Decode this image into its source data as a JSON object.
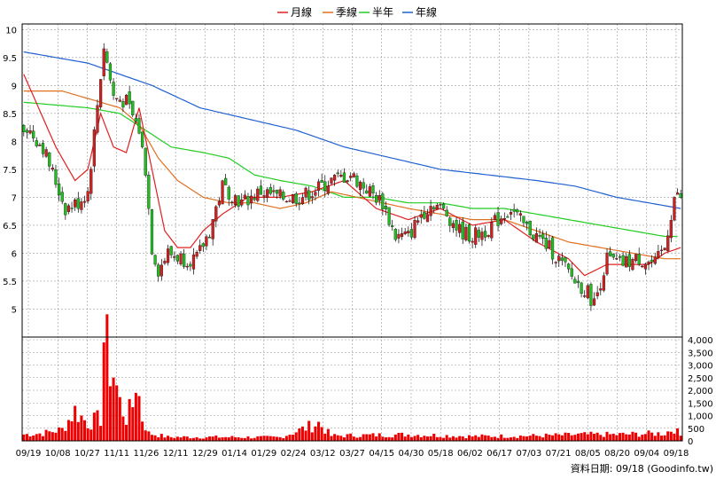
{
  "chart_data": {
    "type": "candlestick",
    "legend": [
      {
        "label": "月線",
        "color": "#e02020"
      },
      {
        "label": "季線",
        "color": "#e07020"
      },
      {
        "label": "半年",
        "color": "#22cc22"
      },
      {
        "label": "年線",
        "color": "#2060d0"
      }
    ],
    "price_axis": {
      "ticks": [
        "10",
        "9.5",
        "9",
        "8.5",
        "8",
        "7.5",
        "7",
        "6.5",
        "6",
        "5.5",
        "5"
      ],
      "min": 4.5,
      "max": 10.1
    },
    "volume_axis": {
      "ticks": [
        "4,000",
        "3,500",
        "3,000",
        "2,500",
        "2,000",
        "1,500",
        "1,000",
        "500",
        "0"
      ],
      "max": 4000
    },
    "x_ticks": [
      "09/19",
      "10/08",
      "10/27",
      "11/11",
      "11/26",
      "12/11",
      "12/29",
      "01/14",
      "01/29",
      "02/24",
      "03/12",
      "03/27",
      "04/15",
      "04/30",
      "05/18",
      "06/02",
      "06/17",
      "07/03",
      "07/21",
      "08/05",
      "08/20",
      "09/04",
      "09/18"
    ],
    "footer": "資料日期: 09/18  (Goodinfo.tw)",
    "colors": {
      "up": "#cc2222",
      "down": "#22bb22",
      "volume": "#ee0000",
      "grid": "#999999"
    },
    "price_keyframes": [
      [
        0,
        8.3
      ],
      [
        6,
        7.9
      ],
      [
        13,
        6.8
      ],
      [
        17,
        6.9
      ],
      [
        20,
        7.1
      ],
      [
        25,
        9.7
      ],
      [
        28,
        8.8
      ],
      [
        32,
        8.7
      ],
      [
        36,
        8.2
      ],
      [
        38,
        7.5
      ],
      [
        40,
        6.1
      ],
      [
        42,
        5.7
      ],
      [
        45,
        6.0
      ],
      [
        50,
        5.9
      ],
      [
        54,
        5.9
      ],
      [
        58,
        6.4
      ],
      [
        62,
        7.2
      ],
      [
        68,
        6.9
      ],
      [
        74,
        7.1
      ],
      [
        80,
        7.0
      ],
      [
        86,
        7.0
      ],
      [
        90,
        7.1
      ],
      [
        96,
        7.3
      ],
      [
        102,
        7.4
      ],
      [
        108,
        7.1
      ],
      [
        112,
        6.9
      ],
      [
        116,
        6.3
      ],
      [
        120,
        6.3
      ],
      [
        124,
        6.7
      ],
      [
        128,
        6.9
      ],
      [
        132,
        6.7
      ],
      [
        136,
        6.4
      ],
      [
        140,
        6.3
      ],
      [
        144,
        6.4
      ],
      [
        148,
        6.6
      ],
      [
        152,
        6.8
      ],
      [
        156,
        6.5
      ],
      [
        160,
        6.3
      ],
      [
        164,
        6.1
      ],
      [
        168,
        5.8
      ],
      [
        172,
        5.5
      ],
      [
        176,
        5.3
      ],
      [
        178,
        5.1
      ],
      [
        182,
        5.9
      ],
      [
        186,
        5.8
      ],
      [
        192,
        5.9
      ],
      [
        197,
        5.8
      ],
      [
        200,
        6.1
      ],
      [
        203,
        7.0
      ],
      [
        205,
        7.0
      ]
    ],
    "volume_keyframes": [
      [
        0,
        250
      ],
      [
        6,
        300
      ],
      [
        12,
        450
      ],
      [
        16,
        1200
      ],
      [
        20,
        700
      ],
      [
        24,
        900
      ],
      [
        25,
        4100
      ],
      [
        27,
        3000
      ],
      [
        28,
        2700
      ],
      [
        30,
        1500
      ],
      [
        32,
        900
      ],
      [
        34,
        1400
      ],
      [
        35,
        2500
      ],
      [
        37,
        900
      ],
      [
        39,
        300
      ],
      [
        45,
        150
      ],
      [
        60,
        150
      ],
      [
        80,
        140
      ],
      [
        92,
        700
      ],
      [
        96,
        200
      ],
      [
        120,
        250
      ],
      [
        140,
        180
      ],
      [
        160,
        200
      ],
      [
        175,
        250
      ],
      [
        185,
        250
      ],
      [
        200,
        300
      ],
      [
        203,
        500
      ],
      [
        205,
        200
      ]
    ],
    "ma_month": [
      [
        0,
        9.2
      ],
      [
        10,
        7.9
      ],
      [
        16,
        7.3
      ],
      [
        20,
        7.5
      ],
      [
        24,
        8.5
      ],
      [
        28,
        7.9
      ],
      [
        32,
        7.8
      ],
      [
        36,
        8.6
      ],
      [
        40,
        7.5
      ],
      [
        44,
        6.4
      ],
      [
        48,
        6.1
      ],
      [
        52,
        6.1
      ],
      [
        56,
        6.4
      ],
      [
        62,
        6.7
      ],
      [
        70,
        7.0
      ],
      [
        80,
        7.0
      ],
      [
        90,
        7.1
      ],
      [
        100,
        7.3
      ],
      [
        110,
        6.8
      ],
      [
        120,
        6.6
      ],
      [
        130,
        6.8
      ],
      [
        140,
        6.5
      ],
      [
        150,
        6.6
      ],
      [
        160,
        6.2
      ],
      [
        170,
        5.9
      ],
      [
        175,
        5.6
      ],
      [
        182,
        5.8
      ],
      [
        195,
        5.8
      ],
      [
        200,
        6.0
      ],
      [
        205,
        6.1
      ]
    ],
    "ma_quarter": [
      [
        0,
        8.9
      ],
      [
        12,
        8.9
      ],
      [
        24,
        8.7
      ],
      [
        30,
        8.6
      ],
      [
        36,
        8.3
      ],
      [
        42,
        7.7
      ],
      [
        48,
        7.3
      ],
      [
        56,
        7.0
      ],
      [
        64,
        6.9
      ],
      [
        72,
        6.9
      ],
      [
        80,
        6.8
      ],
      [
        88,
        6.9
      ],
      [
        96,
        7.1
      ],
      [
        104,
        7.0
      ],
      [
        112,
        6.9
      ],
      [
        120,
        6.8
      ],
      [
        130,
        6.7
      ],
      [
        140,
        6.6
      ],
      [
        150,
        6.6
      ],
      [
        160,
        6.4
      ],
      [
        170,
        6.2
      ],
      [
        180,
        6.1
      ],
      [
        190,
        6.0
      ],
      [
        200,
        5.9
      ],
      [
        205,
        5.9
      ]
    ],
    "ma_half": [
      [
        0,
        8.7
      ],
      [
        20,
        8.6
      ],
      [
        30,
        8.5
      ],
      [
        38,
        8.2
      ],
      [
        46,
        7.9
      ],
      [
        56,
        7.8
      ],
      [
        64,
        7.7
      ],
      [
        72,
        7.4
      ],
      [
        80,
        7.3
      ],
      [
        90,
        7.2
      ],
      [
        100,
        7.0
      ],
      [
        110,
        7.0
      ],
      [
        120,
        6.9
      ],
      [
        130,
        6.9
      ],
      [
        140,
        6.8
      ],
      [
        150,
        6.8
      ],
      [
        160,
        6.7
      ],
      [
        170,
        6.6
      ],
      [
        180,
        6.5
      ],
      [
        190,
        6.4
      ],
      [
        200,
        6.3
      ],
      [
        204,
        6.3
      ]
    ],
    "ma_year": [
      [
        0,
        9.6
      ],
      [
        20,
        9.4
      ],
      [
        40,
        9.0
      ],
      [
        55,
        8.6
      ],
      [
        70,
        8.4
      ],
      [
        85,
        8.2
      ],
      [
        100,
        7.9
      ],
      [
        115,
        7.7
      ],
      [
        130,
        7.5
      ],
      [
        145,
        7.4
      ],
      [
        160,
        7.3
      ],
      [
        172,
        7.2
      ],
      [
        185,
        7.0
      ],
      [
        195,
        6.9
      ],
      [
        205,
        6.8
      ]
    ]
  }
}
